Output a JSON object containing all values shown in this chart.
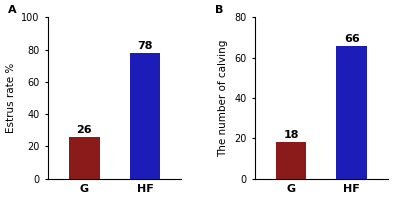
{
  "panel_A": {
    "label": "A",
    "categories": [
      "G",
      "HF"
    ],
    "values": [
      26,
      78
    ],
    "colors": [
      "#8B1A1A",
      "#1C1CB8"
    ],
    "ylabel": "Estrus rate %",
    "ylim": [
      0,
      100
    ],
    "yticks": [
      0,
      20,
      40,
      60,
      80,
      100
    ]
  },
  "panel_B": {
    "label": "B",
    "categories": [
      "G",
      "HF"
    ],
    "values": [
      18,
      66
    ],
    "colors": [
      "#8B1A1A",
      "#1C1CB8"
    ],
    "ylabel": "The number of calving",
    "ylim": [
      0,
      80
    ],
    "yticks": [
      0,
      20,
      40,
      60,
      80
    ]
  },
  "bar_width": 0.5,
  "value_fontsize": 8,
  "ylabel_fontsize": 7.5,
  "tick_fontsize": 7,
  "xlabel_fontsize": 8,
  "panel_label_fontsize": 8,
  "background_color": "#ffffff"
}
